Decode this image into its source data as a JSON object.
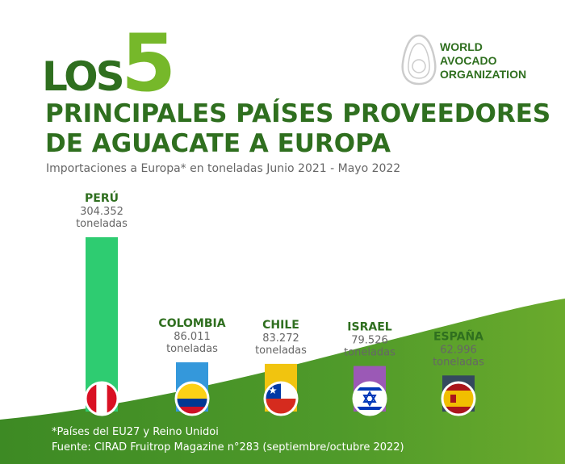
{
  "header": {
    "los": "LOS",
    "five": "5",
    "title_line1": "PRINCIPALES PAÍSES PROVEEDORES",
    "title_line2": "DE AGUACATE A EUROPA",
    "subtitle": "Importaciones a Europa* en toneladas Junio 2021 - Mayo 2022"
  },
  "brand": {
    "line1": "WORLD",
    "line2": "AVOCADO",
    "line3": "ORGANIZATION"
  },
  "footer": {
    "note": "*Países del EU27 y Reino Unidoi",
    "source": "Fuente: CIRAD Fruitrop Magazine n°283 (septiembre/octubre 2022)"
  },
  "colors": {
    "dark_green": "#2f6f1f",
    "light_green": "#76b82a",
    "wave_green": "#4f9a2a"
  },
  "chart_data": {
    "type": "bar",
    "categories": [
      "PERÚ",
      "COLOMBIA",
      "CHILE",
      "ISRAEL",
      "ESPAÑA"
    ],
    "values": [
      304352,
      86011,
      83272,
      79526,
      62996
    ],
    "value_labels": [
      "304.352",
      "86.011",
      "83.272",
      "79.526",
      "62.996"
    ],
    "unit": "toneladas",
    "colors": [
      "#2ecc71",
      "#3498db",
      "#f1c40f",
      "#9b59b6",
      "#34495e"
    ],
    "flags": [
      "peru-flag",
      "colombia-flag",
      "chile-flag",
      "israel-flag",
      "spain-flag"
    ]
  }
}
